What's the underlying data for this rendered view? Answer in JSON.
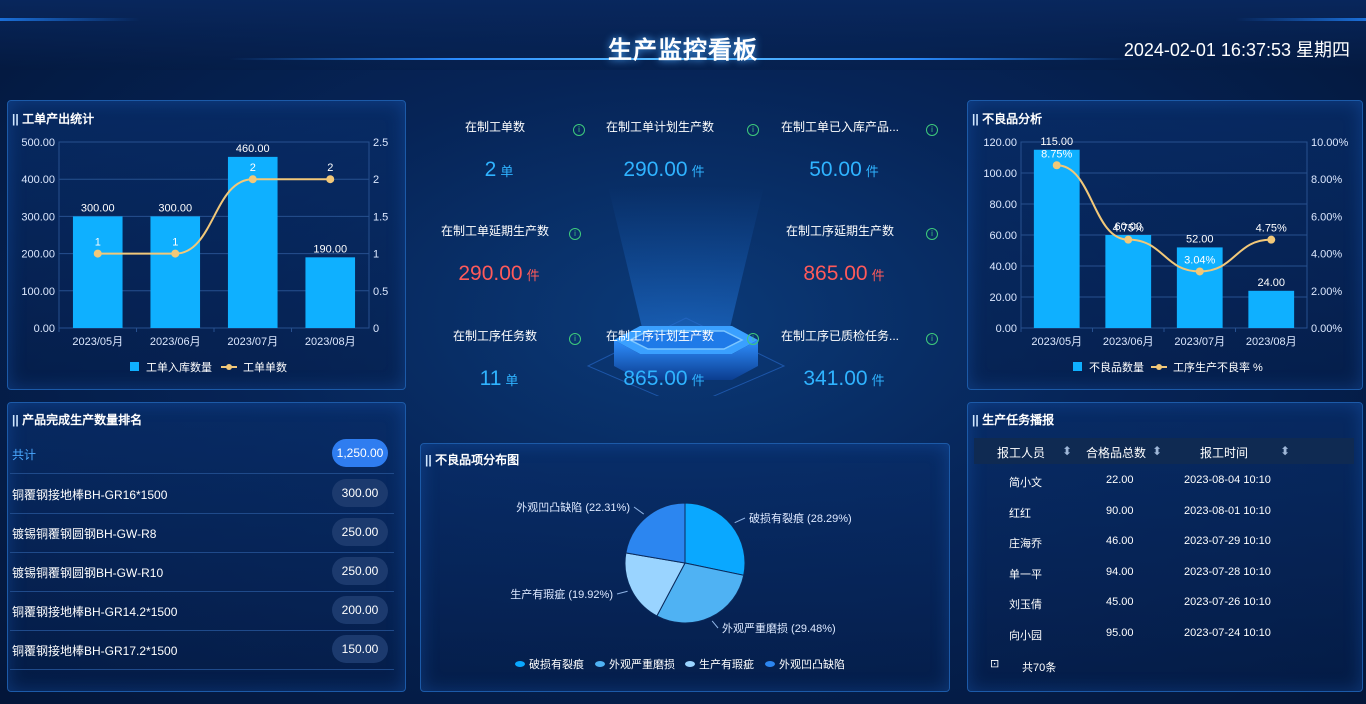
{
  "header": {
    "title": "生产监控看板",
    "datetime": "2024-02-01 16:37:53 星期四"
  },
  "panels": {
    "output": "工单产出统计",
    "defect": "不良品分析",
    "rank": "产品完成生产数量排名",
    "pie": "不良品项分布图",
    "task": "生产任务播报"
  },
  "kpis": [
    {
      "label": "在制工单数",
      "value": "2",
      "unit": "单",
      "color": "blue"
    },
    {
      "label": "在制工单计划生产数",
      "value": "290.00",
      "unit": "件",
      "color": "blue"
    },
    {
      "label": "在制工单已入库产品...",
      "value": "50.00",
      "unit": "件",
      "color": "blue"
    },
    {
      "label": "在制工单延期生产数",
      "value": "290.00",
      "unit": "件",
      "color": "red"
    },
    {
      "label": "在制工序延期生产数",
      "value": "865.00",
      "unit": "件",
      "color": "red"
    },
    {
      "label": "在制工序任务数",
      "value": "11",
      "unit": "单",
      "color": "blue"
    },
    {
      "label": "在制工序计划生产数",
      "value": "865.00",
      "unit": "件",
      "color": "blue"
    },
    {
      "label": "在制工序已质检任务...",
      "value": "341.00",
      "unit": "件",
      "color": "blue"
    }
  ],
  "chart_data": [
    {
      "type": "bar",
      "categories": [
        "2023/05月",
        "2023/06月",
        "2023/07月",
        "2023/08月"
      ],
      "series": [
        {
          "name": "工单入库数量",
          "type": "bar",
          "values": [
            300,
            300,
            460,
            190
          ],
          "labels": [
            "300.00",
            "300.00",
            "460.00",
            "190.00"
          ]
        },
        {
          "name": "工单单数",
          "type": "line",
          "axis": "right",
          "values": [
            1,
            1,
            2,
            2
          ],
          "labels": [
            "1",
            "1",
            "2",
            "2"
          ]
        }
      ],
      "ylim": [
        0,
        500
      ],
      "y_ticks": [
        "0.00",
        "100.00",
        "200.00",
        "300.00",
        "400.00",
        "500.00"
      ],
      "y2lim": [
        0,
        2.5
      ],
      "y2_ticks": [
        "0",
        "0.5",
        "1",
        "1.5",
        "2",
        "2.5"
      ],
      "legend": "bottom",
      "colors": {
        "bar": "#0fb0ff",
        "line": "#f2c879"
      }
    },
    {
      "type": "bar",
      "categories": [
        "2023/05月",
        "2023/06月",
        "2023/07月",
        "2023/08月"
      ],
      "series": [
        {
          "name": "不良品数量",
          "type": "bar",
          "values": [
            115,
            60,
            52,
            24
          ],
          "labels": [
            "115.00",
            "60.00",
            "52.00",
            "24.00"
          ]
        },
        {
          "name": "工序生产不良率 %",
          "type": "line",
          "axis": "right",
          "values": [
            8.75,
            4.75,
            3.04,
            4.75
          ],
          "labels": [
            "8.75%",
            "4.75%",
            "3.04%",
            "4.75%"
          ]
        }
      ],
      "ylim": [
        0,
        120
      ],
      "y_ticks": [
        "0.00",
        "20.00",
        "40.00",
        "60.00",
        "80.00",
        "100.00",
        "120.00"
      ],
      "y2lim": [
        0,
        10
      ],
      "y2_ticks": [
        "0.00%",
        "2.00%",
        "4.00%",
        "6.00%",
        "8.00%",
        "10.00%"
      ],
      "legend": "bottom",
      "colors": {
        "bar": "#0fb0ff",
        "line": "#f2c879"
      }
    },
    {
      "type": "pie",
      "slices": [
        {
          "name": "破损有裂痕",
          "value": 28.29,
          "label": "破损有裂痕 (28.29%)",
          "color": "#0aa8ff"
        },
        {
          "name": "外观严重磨损",
          "value": 29.48,
          "label": "外观严重磨损 (29.48%)",
          "color": "#4fb2f3"
        },
        {
          "name": "生产有瑕疵",
          "value": 19.92,
          "label": "生产有瑕疵 (19.92%)",
          "color": "#9ad4ff"
        },
        {
          "name": "外观凹凸缺陷",
          "value": 22.31,
          "label": "外观凹凸缺陷 (22.31%)",
          "color": "#2c86f0"
        }
      ],
      "legend": "bottom"
    }
  ],
  "rank": {
    "total": {
      "name": "共计",
      "value": "1,250.00"
    },
    "items": [
      {
        "name": "铜覆钢接地棒BH-GR16*1500",
        "value": "300.00"
      },
      {
        "name": "镀锡铜覆钢圆钢BH-GW-R8",
        "value": "250.00"
      },
      {
        "name": "镀锡铜覆钢圆钢BH-GW-R10",
        "value": "250.00"
      },
      {
        "name": "铜覆钢接地棒BH-GR14.2*1500",
        "value": "200.00"
      },
      {
        "name": "铜覆钢接地棒BH-GR17.2*1500",
        "value": "150.00"
      }
    ]
  },
  "task": {
    "columns": [
      "报工人员",
      "合格品总数",
      "报工时间"
    ],
    "rows": [
      [
        "简小文",
        "22.00",
        "2023-08-04 10:10"
      ],
      [
        "红红",
        "90.00",
        "2023-08-01 10:10"
      ],
      [
        "庄海乔",
        "46.00",
        "2023-07-29 10:10"
      ],
      [
        "单一平",
        "94.00",
        "2023-07-28 10:10"
      ],
      [
        "刘玉倩",
        "45.00",
        "2023-07-26 10:10"
      ],
      [
        "向小园",
        "95.00",
        "2023-07-24 10:10"
      ]
    ],
    "total": "共70条"
  }
}
